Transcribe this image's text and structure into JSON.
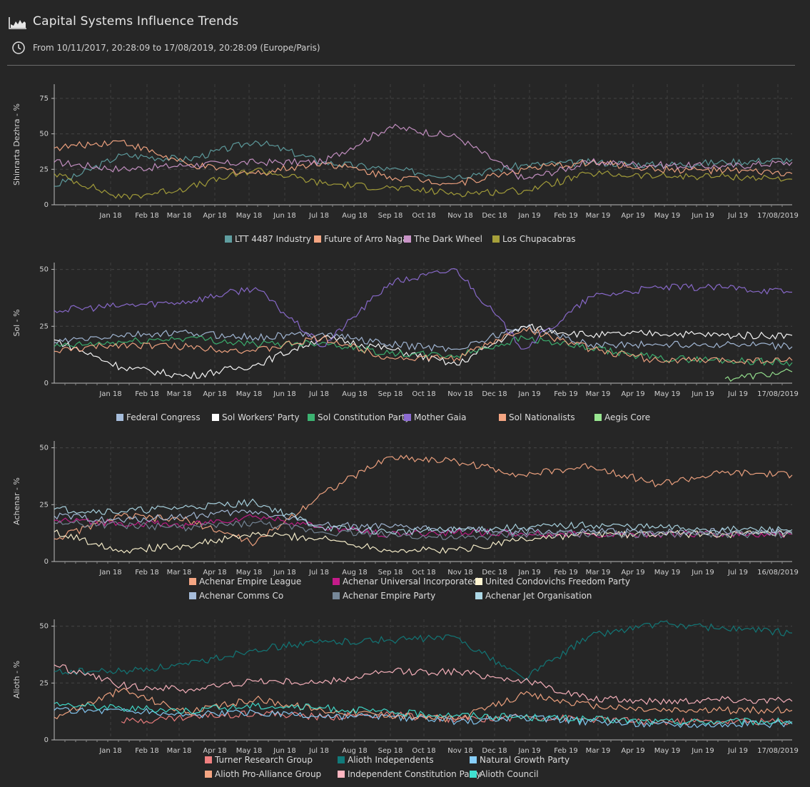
{
  "header": {
    "title": "Capital Systems Influence Trends",
    "subtitle": "From 10/11/2017, 20:28:09 to 17/08/2019, 20:28:09 (Europe/Paris)",
    "title_icon": "area-chart-icon",
    "subtitle_icon": "clock-icon"
  },
  "chart_data": [
    {
      "type": "line",
      "ylabel": "Shinrarta Dezhra - %",
      "ylim": [
        0,
        85
      ],
      "yticks": [
        0,
        25,
        50,
        75
      ],
      "x_ticks": [
        "Jan 18",
        "Feb 18",
        "Mar 18",
        "Apr 18",
        "May 18",
        "Jun 18",
        "Jul 18",
        "Aug 18",
        "Sep 18",
        "Oct 18",
        "Nov 18",
        "Dec 18",
        "Jan 19",
        "Feb 19",
        "Mar 19",
        "Apr 19",
        "May 19",
        "Jun 19",
        "Jul 19",
        "17/08/2019"
      ],
      "x": [
        "Nov 17",
        "Jan 18",
        "Mar 18",
        "May 18",
        "Jul 18",
        "Sep 18",
        "Nov 18",
        "Jan 19",
        "Mar 19",
        "May 19",
        "Jul 19",
        "Aug 19"
      ],
      "series": [
        {
          "name": "LTT 4487 Industry",
          "color": "#5f9ea0",
          "values": [
            13,
            35,
            32,
            45,
            30,
            25,
            20,
            28,
            30,
            28,
            30,
            32
          ]
        },
        {
          "name": "Future of Arro Naga",
          "color": "#f4a582",
          "values": [
            40,
            45,
            28,
            22,
            30,
            20,
            15,
            25,
            30,
            25,
            24,
            22
          ]
        },
        {
          "name": "The Dark Wheel",
          "color": "#c994c7",
          "values": [
            30,
            25,
            28,
            30,
            30,
            55,
            48,
            18,
            30,
            28,
            27,
            30
          ]
        },
        {
          "name": "Los Chupacabras",
          "color": "#a6a03a",
          "values": [
            22,
            5,
            12,
            25,
            15,
            12,
            8,
            10,
            22,
            20,
            20,
            18
          ]
        }
      ]
    },
    {
      "type": "line",
      "ylabel": "Sol - %",
      "ylim": [
        0,
        53
      ],
      "yticks": [
        0,
        25,
        50
      ],
      "x_ticks": [
        "Jan 18",
        "Feb 18",
        "Mar 18",
        "Apr 18",
        "May 18",
        "Jun 18",
        "Jul 18",
        "Aug 18",
        "Sep 18",
        "Oct 18",
        "Nov 18",
        "Dec 18",
        "Jan 19",
        "Feb 19",
        "Mar 19",
        "Apr 19",
        "May 19",
        "Jun 19",
        "Jul 19",
        "17/08/2019"
      ],
      "x": [
        "Nov 17",
        "Jan 18",
        "Mar 18",
        "May 18",
        "Jul 18",
        "Sep 18",
        "Nov 18",
        "Jan 19",
        "Mar 19",
        "May 19",
        "Jul 19",
        "Aug 19"
      ],
      "series": [
        {
          "name": "Federal Congress",
          "color": "#a6bddb",
          "values": [
            18,
            21,
            22,
            20,
            22,
            17,
            15,
            25,
            17,
            17,
            17,
            16
          ]
        },
        {
          "name": "Sol Workers' Party",
          "color": "#ffffff",
          "values": [
            19,
            7,
            3,
            8,
            20,
            15,
            8,
            25,
            21,
            22,
            21,
            21
          ]
        },
        {
          "name": "Sol Constitution Party",
          "color": "#3cb371",
          "values": [
            16,
            18,
            20,
            17,
            18,
            13,
            12,
            20,
            15,
            11,
            10,
            9
          ]
        },
        {
          "name": "Mother Gaia",
          "color": "#8c6bd1",
          "values": [
            32,
            34,
            36,
            42,
            16,
            44,
            50,
            15,
            38,
            42,
            42,
            40
          ]
        },
        {
          "name": "Sol Nationalists",
          "color": "#f4a582",
          "values": [
            14,
            17,
            16,
            14,
            20,
            11,
            11,
            24,
            15,
            10,
            10,
            10
          ]
        },
        {
          "name": "Aegis Core",
          "color": "#98e690",
          "values": [
            null,
            null,
            null,
            null,
            null,
            null,
            null,
            null,
            null,
            null,
            2,
            5
          ]
        }
      ]
    },
    {
      "type": "line",
      "ylabel": "Achenar - %",
      "ylim": [
        0,
        53
      ],
      "yticks": [
        0,
        25,
        50
      ],
      "x_ticks": [
        "Jan 18",
        "Feb 18",
        "Mar 18",
        "Apr 18",
        "May 18",
        "Jun 18",
        "Jul 18",
        "Aug 18",
        "Sep 18",
        "Oct 18",
        "Nov 18",
        "Dec 18",
        "Jan 19",
        "Feb 19",
        "Mar 19",
        "Apr 19",
        "May 19",
        "Jun 19",
        "Jul 19",
        "16/08/2019"
      ],
      "x": [
        "Nov 17",
        "Jan 18",
        "Mar 18",
        "May 18",
        "Jul 18",
        "Sep 18",
        "Nov 18",
        "Jan 19",
        "Mar 19",
        "May 19",
        "Jul 19",
        "Aug 19"
      ],
      "series": [
        {
          "name": "Achenar Empire League",
          "color": "#f4a582",
          "values": [
            10,
            20,
            18,
            8,
            30,
            46,
            44,
            38,
            42,
            34,
            39,
            38
          ]
        },
        {
          "name": "Achenar Universal Incorporated",
          "color": "#c51b8a",
          "values": [
            18,
            17,
            16,
            20,
            15,
            12,
            13,
            12,
            12,
            12,
            12,
            12
          ]
        },
        {
          "name": "United Condovichs Freedom Party",
          "color": "#fff5d1",
          "values": [
            13,
            5,
            7,
            12,
            10,
            5,
            5,
            10,
            12,
            12,
            12,
            12
          ]
        },
        {
          "name": "Achenar Comms Co",
          "color": "#a6bddb",
          "values": [
            20,
            18,
            20,
            22,
            16,
            15,
            14,
            13,
            13,
            13,
            13,
            13
          ]
        },
        {
          "name": "Achenar Empire Party",
          "color": "#778899",
          "values": [
            17,
            16,
            15,
            17,
            13,
            12,
            10,
            12,
            12,
            12,
            12,
            12
          ]
        },
        {
          "name": "Achenar Jet Organisation",
          "color": "#add8e6",
          "values": [
            23,
            22,
            24,
            26,
            15,
            13,
            14,
            15,
            16,
            15,
            14,
            14
          ]
        }
      ]
    },
    {
      "type": "line",
      "ylabel": "Alioth - %",
      "ylim": [
        0,
        53
      ],
      "yticks": [
        0,
        25,
        50
      ],
      "x_ticks": [
        "Jan 18",
        "Feb 18",
        "Mar 18",
        "Apr 18",
        "May 18",
        "Jun 18",
        "Jul 18",
        "Aug 18",
        "Sep 18",
        "Oct 18",
        "Nov 18",
        "Dec 18",
        "Jan 19",
        "Feb 19",
        "Mar 19",
        "Apr 19",
        "May 19",
        "Jun 19",
        "Jul 19",
        "17/08/2019"
      ],
      "x": [
        "Nov 17",
        "Jan 18",
        "Mar 18",
        "May 18",
        "Jul 18",
        "Sep 18",
        "Nov 18",
        "Jan 19",
        "Mar 19",
        "May 19",
        "Jul 19",
        "Aug 19"
      ],
      "series": [
        {
          "name": "Turner Research Group",
          "color": "#f08080",
          "values": [
            null,
            8,
            10,
            12,
            10,
            11,
            9,
            10,
            9,
            8,
            8,
            8
          ]
        },
        {
          "name": "Alioth Independents",
          "color": "#117a7a",
          "values": [
            30,
            30,
            33,
            40,
            43,
            44,
            45,
            27,
            46,
            51,
            49,
            47
          ]
        },
        {
          "name": "Natural Growth Party",
          "color": "#87cefa",
          "values": [
            13,
            13,
            11,
            12,
            10,
            10,
            8,
            10,
            8,
            7,
            7,
            7
          ]
        },
        {
          "name": "Alioth Pro-Alliance Group",
          "color": "#f4a582",
          "values": [
            10,
            22,
            12,
            18,
            13,
            11,
            9,
            20,
            15,
            13,
            13,
            13
          ]
        },
        {
          "name": "Independent Constitution Party",
          "color": "#ffb6c1",
          "values": [
            33,
            24,
            22,
            26,
            25,
            30,
            30,
            26,
            18,
            17,
            18,
            17
          ]
        },
        {
          "name": "Alioth Council",
          "color": "#40e0d0",
          "values": [
            16,
            14,
            13,
            15,
            14,
            12,
            11,
            10,
            9,
            8,
            8,
            8
          ]
        }
      ]
    }
  ]
}
